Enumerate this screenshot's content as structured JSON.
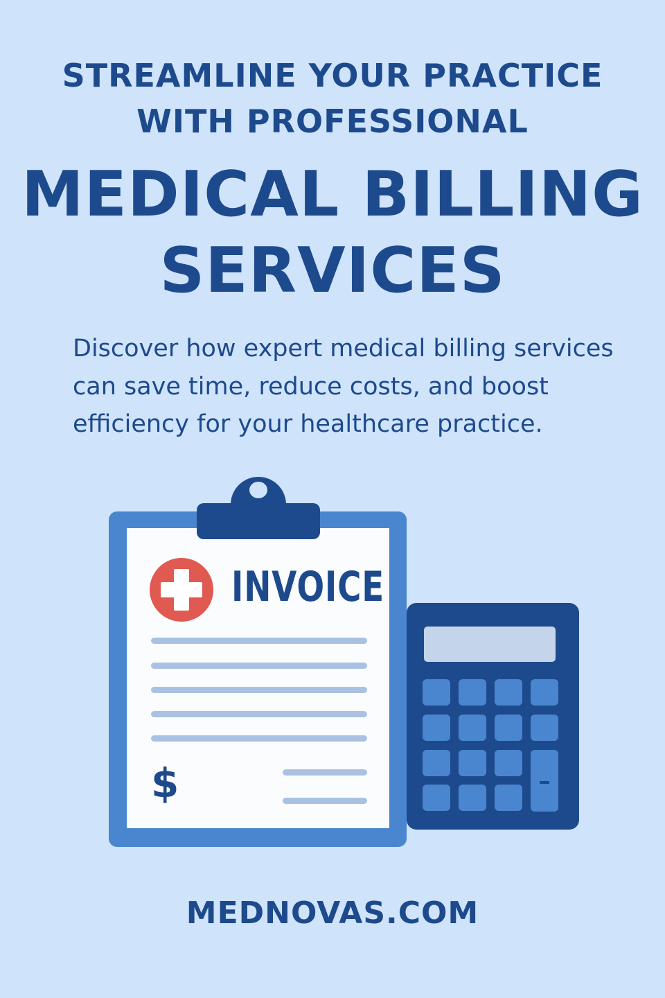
{
  "headline": {
    "line1": "STREAMLINE YOUR PRACTICE",
    "line2": "WITH PROFESSIONAL",
    "line3": "MEDICAL BILLING",
    "line4": "SERVICES"
  },
  "description": "Discover how expert medical billing services can save time, reduce costs, and boost efficiency for your healthcare practice.",
  "illustration": {
    "invoice_title": "INVOICE",
    "currency_symbol": "$",
    "icons": [
      "clipboard-icon",
      "medical-cross-icon",
      "calculator-icon"
    ]
  },
  "footer": {
    "website": "MEDNOVAS.COM"
  },
  "colors": {
    "background": "#cfe3fb",
    "primary": "#1d4a8c",
    "accent": "#4a86cf",
    "cross": "#e05a52"
  }
}
